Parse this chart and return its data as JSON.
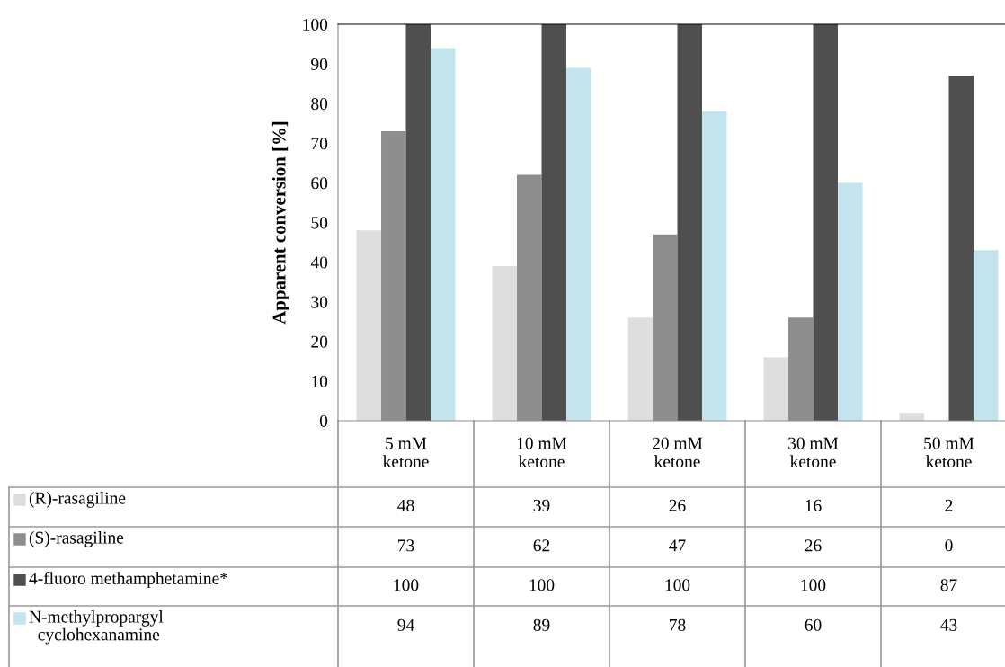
{
  "chart_data": {
    "type": "bar",
    "ylabel": "Apparent conversion [%]",
    "categories": [
      "5 mM\nketone",
      "10 mM\nketone",
      "20 mM\nketone",
      "30 mM\nketone",
      "50 mM\nketone"
    ],
    "series": [
      {
        "name": "(R)-rasagiline",
        "color": "#dedede",
        "values": [
          48,
          39,
          26,
          16,
          2
        ]
      },
      {
        "name": "(S)-rasagiline",
        "color": "#8e8e8e",
        "values": [
          73,
          62,
          47,
          26,
          0
        ]
      },
      {
        "name": "4-fluoro methamphetamine*",
        "color": "#4f4f4f",
        "values": [
          100,
          100,
          100,
          100,
          87
        ]
      },
      {
        "name": "N-methylpropargyl\n  cyclohexanamine",
        "color": "#c3e4ed",
        "values": [
          94,
          89,
          78,
          60,
          43
        ]
      }
    ],
    "ylim": [
      0,
      100
    ],
    "yticks": [
      0,
      10,
      20,
      30,
      40,
      50,
      60,
      70,
      80,
      90,
      100
    ],
    "data_labels": true,
    "grid": false,
    "legend": "bottom left"
  }
}
